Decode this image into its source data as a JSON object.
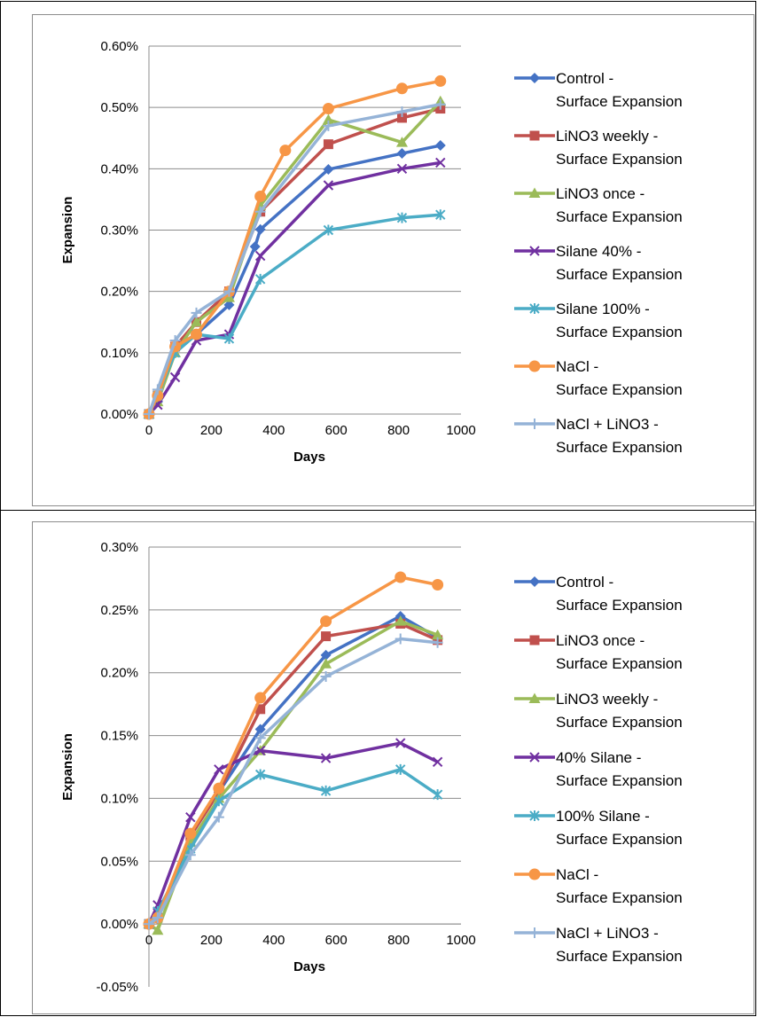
{
  "chart_data": [
    {
      "type": "line",
      "xlabel": "Days",
      "ylabel": "Expansion",
      "xlim": [
        0,
        1000
      ],
      "ylim": [
        0,
        0.006
      ],
      "x_ticks": [
        "0",
        "200",
        "400",
        "600",
        "800",
        "1000"
      ],
      "y_ticks": [
        "0.00%",
        "0.10%",
        "0.20%",
        "0.30%",
        "0.40%",
        "0.50%",
        "0.60%"
      ],
      "grid": "horizontal",
      "legend": "right",
      "series": [
        {
          "name": "Control - Surface Expansion",
          "color": "#4472c4",
          "marker": "diamond",
          "x": [
            0,
            28,
            84,
            152,
            257,
            340,
            357,
            575,
            811,
            934
          ],
          "y": [
            0.0,
            0.0002,
            0.0011,
            0.0013,
            0.00178,
            0.00273,
            0.00301,
            0.00399,
            0.00425,
            0.00438
          ]
        },
        {
          "name": "LiNO3 weekly - Surface Expansion",
          "color": "#c0504d",
          "marker": "square",
          "x": [
            0,
            28,
            84,
            152,
            257,
            357,
            575,
            811,
            934
          ],
          "y": [
            0.0,
            0.0003,
            0.0011,
            0.0015,
            0.002,
            0.0033,
            0.0044,
            0.00483,
            0.00498
          ]
        },
        {
          "name": "LiNO3 once - Surface Expansion",
          "color": "#9bbb59",
          "marker": "triangle",
          "x": [
            0,
            28,
            84,
            152,
            257,
            357,
            575,
            811,
            934
          ],
          "y": [
            0.0,
            0.0002,
            0.001,
            0.0015,
            0.0019,
            0.0034,
            0.0048,
            0.00443,
            0.0051
          ]
        },
        {
          "name": "Silane 40% - Surface Expansion",
          "color": "#7030a0",
          "marker": "x",
          "x": [
            0,
            28,
            84,
            152,
            257,
            357,
            575,
            811,
            934
          ],
          "y": [
            0.0,
            0.00015,
            0.0006,
            0.0012,
            0.0013,
            0.00258,
            0.00373,
            0.004,
            0.0041
          ]
        },
        {
          "name": "Silane 100% - Surface Expansion",
          "color": "#4bacc6",
          "marker": "star",
          "x": [
            0,
            28,
            84,
            152,
            257,
            357,
            575,
            811,
            934
          ],
          "y": [
            0.0,
            0.0003,
            0.001,
            0.0013,
            0.00123,
            0.0022,
            0.003,
            0.0032,
            0.00325
          ]
        },
        {
          "name": "NaCl - Surface Expansion",
          "color": "#f79646",
          "marker": "circle",
          "x": [
            0,
            28,
            84,
            152,
            257,
            357,
            437,
            575,
            811,
            934
          ],
          "y": [
            0.0,
            0.0003,
            0.0011,
            0.0013,
            0.002,
            0.00355,
            0.0043,
            0.00498,
            0.00531,
            0.00543
          ]
        },
        {
          "name": "NaCl + LiNO3 - Surface Expansion",
          "color": "#95b3d7",
          "marker": "plus",
          "x": [
            0,
            28,
            84,
            152,
            257,
            357,
            575,
            811,
            934
          ],
          "y": [
            0.0,
            0.0004,
            0.0012,
            0.00165,
            0.002,
            0.0033,
            0.0047,
            0.00493,
            0.00505
          ]
        }
      ]
    },
    {
      "type": "line",
      "xlabel": "Days",
      "ylabel": "Expansion",
      "xlim": [
        0,
        1000
      ],
      "ylim": [
        -0.0005,
        0.003
      ],
      "x_ticks": [
        "0",
        "200",
        "400",
        "600",
        "800",
        "1000"
      ],
      "y_ticks": [
        "-0.05%",
        "0.00%",
        "0.05%",
        "0.10%",
        "0.15%",
        "0.20%",
        "0.25%",
        "0.30%"
      ],
      "grid": "horizontal",
      "legend": "right",
      "series": [
        {
          "name": "Control - Surface Expansion",
          "color": "#4472c4",
          "marker": "diamond",
          "x": [
            0,
            28,
            133,
            224,
            357,
            567,
            806,
            925
          ],
          "y": [
            0.0,
            5e-05,
            0.0007,
            0.00105,
            0.00155,
            0.00214,
            0.00245,
            0.00228
          ]
        },
        {
          "name": "LiNO3 once - Surface Expansion",
          "color": "#c0504d",
          "marker": "square",
          "x": [
            0,
            28,
            133,
            224,
            357,
            567,
            806,
            925
          ],
          "y": [
            0.0,
            5e-05,
            0.0007,
            0.00105,
            0.00171,
            0.00229,
            0.00239,
            0.00226
          ]
        },
        {
          "name": "LiNO3 weekly - Surface Expansion",
          "color": "#9bbb59",
          "marker": "triangle",
          "x": [
            0,
            28,
            133,
            224,
            357,
            567,
            806,
            925
          ],
          "y": [
            0.0,
            -5e-05,
            0.00065,
            0.001,
            0.00138,
            0.00207,
            0.00241,
            0.0023
          ]
        },
        {
          "name": "40% Silane - Surface Expansion",
          "color": "#7030a0",
          "marker": "x",
          "x": [
            0,
            28,
            133,
            224,
            357,
            567,
            806,
            925
          ],
          "y": [
            0.0,
            0.00015,
            0.00085,
            0.00123,
            0.00138,
            0.00132,
            0.00144,
            0.00129
          ]
        },
        {
          "name": "100% Silane - Surface Expansion",
          "color": "#4bacc6",
          "marker": "star",
          "x": [
            0,
            28,
            133,
            224,
            357,
            567,
            806,
            925
          ],
          "y": [
            0.0,
            0.0001,
            0.0006,
            0.00098,
            0.00119,
            0.00106,
            0.00123,
            0.00103
          ]
        },
        {
          "name": "NaCl - Surface Expansion",
          "color": "#f79646",
          "marker": "circle",
          "x": [
            0,
            28,
            133,
            224,
            357,
            567,
            806,
            925
          ],
          "y": [
            0.0,
            5e-05,
            0.00072,
            0.00108,
            0.0018,
            0.00241,
            0.00276,
            0.0027
          ]
        },
        {
          "name": "NaCl + LiNO3 - Surface Expansion",
          "color": "#95b3d7",
          "marker": "plus",
          "x": [
            0,
            28,
            133,
            224,
            357,
            567,
            806,
            925
          ],
          "y": [
            0.0,
            5e-05,
            0.00055,
            0.00085,
            0.00148,
            0.00197,
            0.00227,
            0.00224
          ]
        }
      ]
    }
  ]
}
